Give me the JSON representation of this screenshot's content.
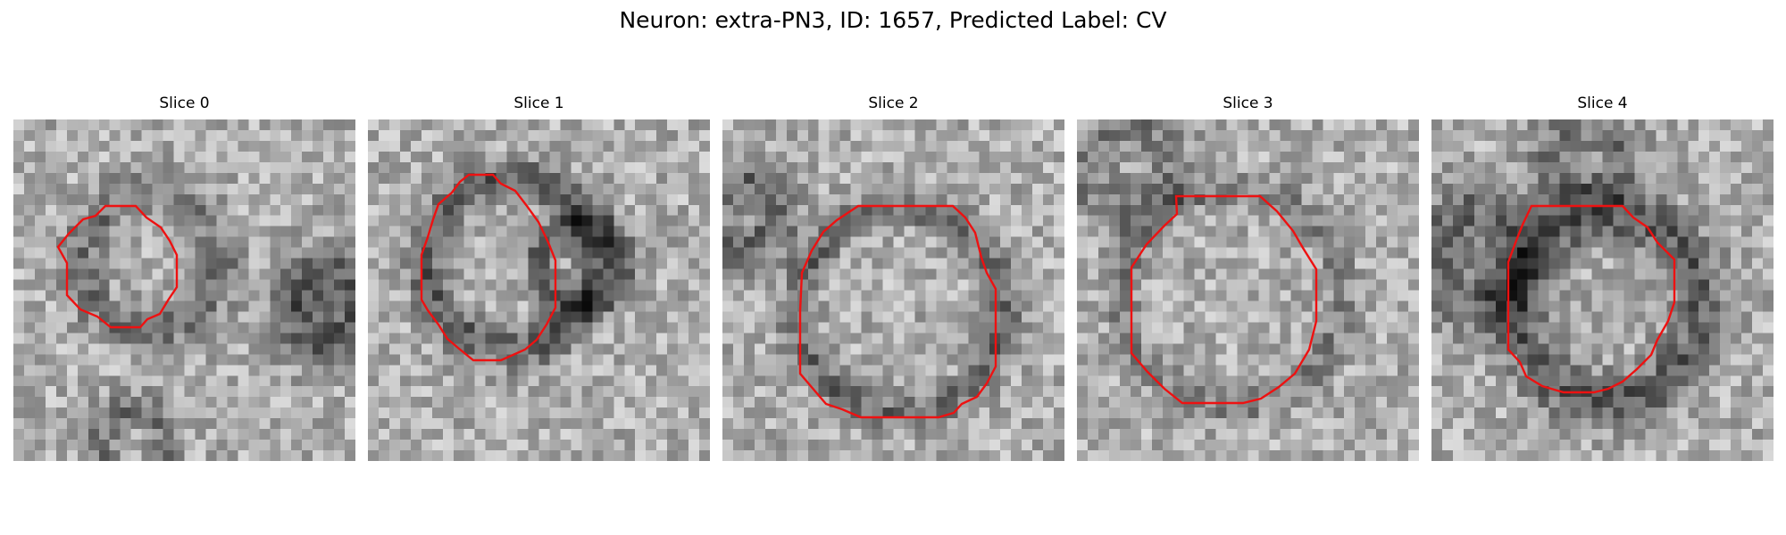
{
  "figure": {
    "title": "Neuron: extra-PN3, ID: 1657, Predicted Label: CV"
  },
  "panels": [
    {
      "title": "Slice 0"
    },
    {
      "title": "Slice 1"
    },
    {
      "title": "Slice 2"
    },
    {
      "title": "Slice 3"
    },
    {
      "title": "Slice 4"
    }
  ],
  "colors": {
    "outline": "#ee1111",
    "colormap": "gray"
  }
}
